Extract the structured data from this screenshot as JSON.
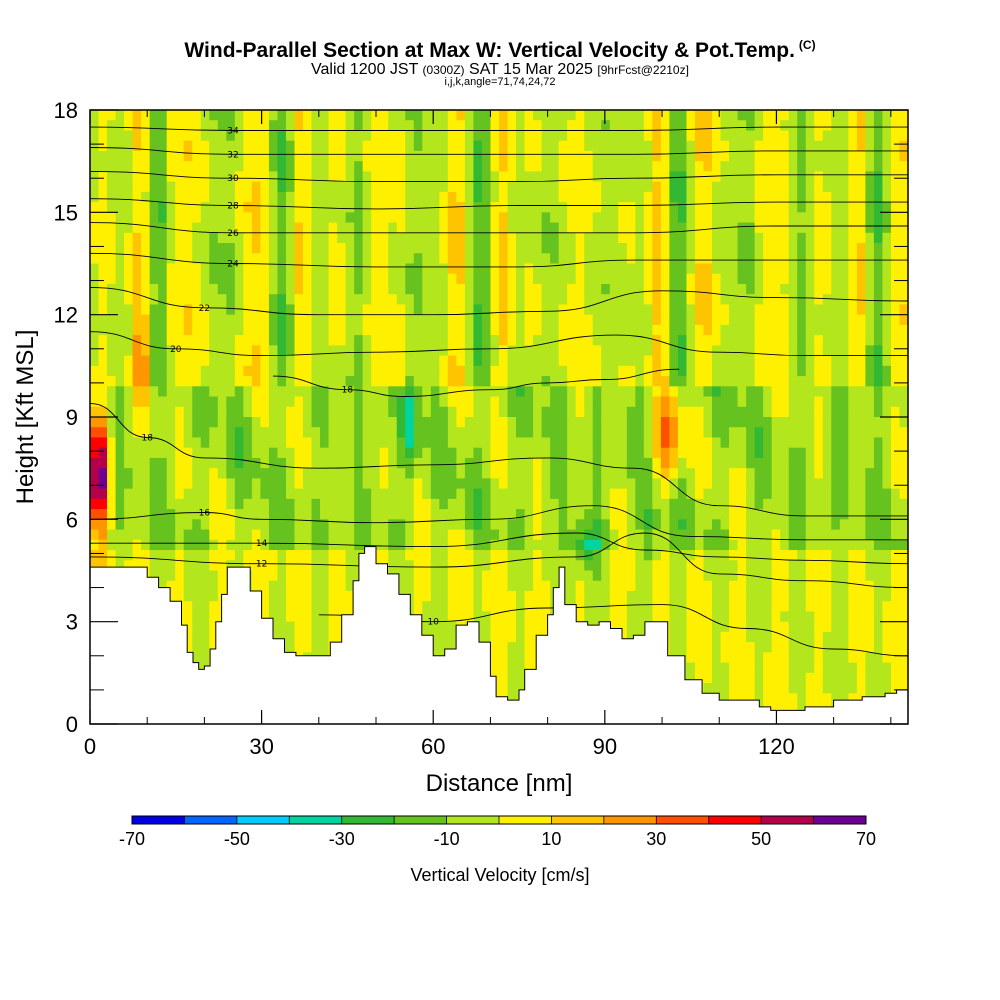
{
  "header": {
    "title": "Wind-Parallel Section at Max W: Vertical Velocity & Pot.Temp.",
    "copyright": "(C)",
    "valid_prefix": "Valid 1200 JST",
    "valid_utc": "(0300Z)",
    "valid_date": "SAT 15 Mar 2025",
    "forecast": "[9hrFcst@2210z]",
    "indices": "i,j,k,angle=71,74,24,72"
  },
  "chart_data": {
    "type": "heatmap",
    "xlabel": "Distance [nm]",
    "ylabel": "Height [Kft MSL]",
    "xlim": [
      0,
      143
    ],
    "ylim": [
      0,
      18
    ],
    "xticks": [
      "0",
      "30",
      "60",
      "90",
      "120"
    ],
    "yticks": [
      "0",
      "3",
      "6",
      "9",
      "12",
      "15",
      "18"
    ],
    "colorbar": {
      "title": "Vertical Velocity [cm/s]",
      "bounds": [
        -70,
        -60,
        -50,
        -40,
        -30,
        -20,
        -10,
        0,
        10,
        20,
        30,
        40,
        50,
        60,
        70
      ],
      "labels": [
        "-70",
        "-50",
        "-30",
        "-10",
        "10",
        "30",
        "50",
        "70"
      ],
      "colors": [
        "#0000e6",
        "#0066ff",
        "#00ccff",
        "#00d4a0",
        "#33b833",
        "#66c21e",
        "#b4e61e",
        "#fff000",
        "#ffc400",
        "#ff9600",
        "#ff5000",
        "#ff0000",
        "#b4004b",
        "#6e0096"
      ]
    },
    "terrain_kft": [
      [
        0,
        4.6
      ],
      [
        8,
        4.6
      ],
      [
        10,
        4.3
      ],
      [
        12,
        4.0
      ],
      [
        14,
        3.6
      ],
      [
        16,
        2.9
      ],
      [
        17,
        2.1
      ],
      [
        18,
        1.8
      ],
      [
        19,
        1.6
      ],
      [
        20,
        1.7
      ],
      [
        21,
        2.2
      ],
      [
        22,
        3.0
      ],
      [
        23,
        3.8
      ],
      [
        24,
        4.6
      ],
      [
        26,
        4.6
      ],
      [
        28,
        3.9
      ],
      [
        30,
        3.1
      ],
      [
        32,
        2.5
      ],
      [
        34,
        2.1
      ],
      [
        36,
        2.0
      ],
      [
        38,
        2.0
      ],
      [
        40,
        2.0
      ],
      [
        42,
        2.4
      ],
      [
        44,
        3.2
      ],
      [
        46,
        4.2
      ],
      [
        47,
        5.0
      ],
      [
        48,
        5.2
      ],
      [
        49,
        5.2
      ],
      [
        50,
        4.7
      ],
      [
        52,
        4.4
      ],
      [
        54,
        3.8
      ],
      [
        56,
        3.2
      ],
      [
        58,
        2.6
      ],
      [
        60,
        2.0
      ],
      [
        62,
        2.2
      ],
      [
        64,
        2.9
      ],
      [
        66,
        3.0
      ],
      [
        68,
        2.4
      ],
      [
        70,
        1.4
      ],
      [
        71,
        0.8
      ],
      [
        73,
        0.7
      ],
      [
        75,
        1.0
      ],
      [
        76,
        1.6
      ],
      [
        78,
        2.6
      ],
      [
        80,
        3.2
      ],
      [
        81,
        4.0
      ],
      [
        82,
        4.6
      ],
      [
        83,
        3.5
      ],
      [
        85,
        3.0
      ],
      [
        87,
        2.9
      ],
      [
        89,
        3.0
      ],
      [
        91,
        2.8
      ],
      [
        93,
        2.5
      ],
      [
        95,
        2.6
      ],
      [
        97,
        3.0
      ],
      [
        99,
        3.0
      ],
      [
        101,
        2.0
      ],
      [
        104,
        1.3
      ],
      [
        107,
        0.9
      ],
      [
        110,
        0.7
      ],
      [
        114,
        0.7
      ],
      [
        117,
        0.5
      ],
      [
        119,
        0.4
      ],
      [
        121,
        0.4
      ],
      [
        125,
        0.5
      ],
      [
        130,
        0.7
      ],
      [
        135,
        0.8
      ],
      [
        139,
        0.9
      ],
      [
        141,
        1.0
      ],
      [
        143,
        1.1
      ]
    ],
    "theta_contours": [
      {
        "label": "10",
        "pts": [
          [
            40,
            3.2
          ],
          [
            60,
            3.0
          ],
          [
            80,
            3.4
          ],
          [
            100,
            3.5
          ],
          [
            115,
            2.8
          ],
          [
            130,
            2.2
          ],
          [
            143,
            2.0
          ]
        ]
      },
      {
        "label": "12",
        "pts": [
          [
            0,
            4.9
          ],
          [
            30,
            4.7
          ],
          [
            60,
            4.6
          ],
          [
            85,
            4.9
          ],
          [
            97,
            5.6
          ],
          [
            110,
            4.4
          ],
          [
            125,
            4.2
          ],
          [
            143,
            4.0
          ]
        ]
      },
      {
        "label": "14",
        "pts": [
          [
            0,
            5.3
          ],
          [
            30,
            5.3
          ],
          [
            60,
            5.2
          ],
          [
            85,
            5.6
          ],
          [
            97,
            5.1
          ],
          [
            110,
            4.9
          ],
          [
            125,
            4.8
          ],
          [
            143,
            4.7
          ]
        ]
      },
      {
        "label": "16",
        "pts": [
          [
            0,
            6.0
          ],
          [
            20,
            6.2
          ],
          [
            30,
            6.0
          ],
          [
            50,
            5.9
          ],
          [
            70,
            6.0
          ],
          [
            88,
            6.4
          ],
          [
            105,
            5.5
          ],
          [
            125,
            5.4
          ],
          [
            143,
            5.4
          ]
        ]
      },
      {
        "label": "18",
        "pts": [
          [
            0,
            9.4
          ],
          [
            10,
            8.4
          ],
          [
            20,
            7.8
          ],
          [
            40,
            7.5
          ],
          [
            60,
            7.6
          ],
          [
            80,
            7.8
          ],
          [
            95,
            7.5
          ],
          [
            110,
            6.4
          ],
          [
            125,
            6.1
          ],
          [
            143,
            6.1
          ]
        ]
      },
      {
        "label": "18",
        "pts": [
          [
            32,
            10.2
          ],
          [
            45,
            9.8
          ],
          [
            55,
            9.6
          ],
          [
            70,
            9.8
          ],
          [
            80,
            10.0
          ],
          [
            90,
            10.1
          ],
          [
            103,
            10.4
          ]
        ]
      },
      {
        "label": "20",
        "pts": [
          [
            0,
            11.5
          ],
          [
            15,
            11.0
          ],
          [
            30,
            10.8
          ],
          [
            50,
            10.9
          ],
          [
            70,
            11.0
          ],
          [
            92,
            11.4
          ],
          [
            110,
            10.9
          ],
          [
            125,
            10.8
          ],
          [
            143,
            10.8
          ]
        ]
      },
      {
        "label": "22",
        "pts": [
          [
            0,
            12.8
          ],
          [
            20,
            12.2
          ],
          [
            40,
            12.0
          ],
          [
            60,
            12.0
          ],
          [
            80,
            12.1
          ],
          [
            100,
            12.7
          ],
          [
            120,
            12.5
          ],
          [
            143,
            12.4
          ]
        ]
      },
      {
        "label": "24",
        "pts": [
          [
            0,
            13.8
          ],
          [
            25,
            13.5
          ],
          [
            50,
            13.4
          ],
          [
            75,
            13.4
          ],
          [
            95,
            13.6
          ],
          [
            120,
            13.6
          ],
          [
            143,
            13.6
          ]
        ]
      },
      {
        "label": "26",
        "pts": [
          [
            0,
            14.7
          ],
          [
            25,
            14.4
          ],
          [
            50,
            14.4
          ],
          [
            75,
            14.4
          ],
          [
            95,
            14.4
          ],
          [
            120,
            14.6
          ],
          [
            143,
            14.6
          ]
        ]
      },
      {
        "label": "28",
        "pts": [
          [
            0,
            15.4
          ],
          [
            25,
            15.2
          ],
          [
            50,
            15.1
          ],
          [
            75,
            15.2
          ],
          [
            95,
            15.2
          ],
          [
            120,
            15.3
          ],
          [
            143,
            15.3
          ]
        ]
      },
      {
        "label": "30",
        "pts": [
          [
            0,
            16.2
          ],
          [
            25,
            16.0
          ],
          [
            50,
            15.9
          ],
          [
            75,
            15.9
          ],
          [
            95,
            16.0
          ],
          [
            120,
            16.1
          ],
          [
            143,
            16.1
          ]
        ]
      },
      {
        "label": "32",
        "pts": [
          [
            0,
            16.9
          ],
          [
            25,
            16.7
          ],
          [
            50,
            16.7
          ],
          [
            75,
            16.7
          ],
          [
            95,
            16.7
          ],
          [
            120,
            16.8
          ],
          [
            143,
            16.8
          ]
        ]
      },
      {
        "label": "34",
        "pts": [
          [
            0,
            17.5
          ],
          [
            25,
            17.4
          ],
          [
            50,
            17.4
          ],
          [
            75,
            17.4
          ],
          [
            95,
            17.4
          ],
          [
            120,
            17.5
          ],
          [
            143,
            17.5
          ]
        ]
      }
    ]
  }
}
